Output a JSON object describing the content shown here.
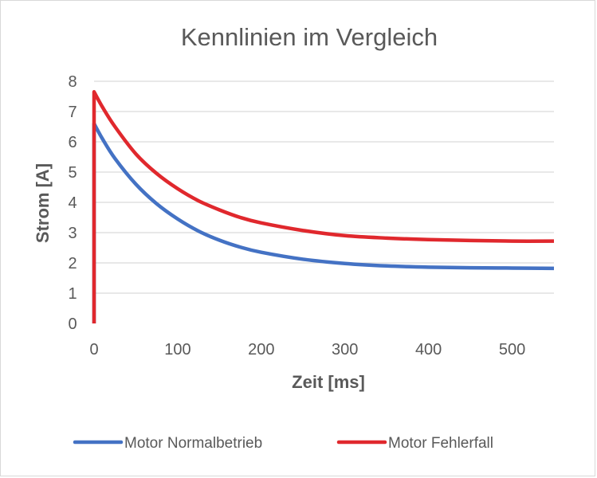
{
  "chart_data": {
    "type": "line",
    "title": "Kennlinien im Vergleich",
    "xlabel": "Zeit [ms]",
    "ylabel": "Strom [A]",
    "xlim": [
      0,
      550
    ],
    "ylim": [
      0,
      8
    ],
    "x_ticks": [
      "0",
      "100",
      "200",
      "300",
      "400",
      "500"
    ],
    "y_ticks": [
      "0",
      "1",
      "2",
      "3",
      "4",
      "5",
      "6",
      "7",
      "8"
    ],
    "grid": true,
    "legend_position": "bottom",
    "series": [
      {
        "name": "Motor Normalbetrieb",
        "color": "#4472C4",
        "x": [
          0,
          0,
          10,
          25,
          50,
          75,
          100,
          125,
          150,
          175,
          200,
          250,
          300,
          350,
          400,
          450,
          500,
          550
        ],
        "values": [
          0,
          6.6,
          6.1,
          5.45,
          4.6,
          3.95,
          3.45,
          3.05,
          2.75,
          2.52,
          2.35,
          2.12,
          1.98,
          1.9,
          1.86,
          1.84,
          1.83,
          1.82
        ]
      },
      {
        "name": "Motor Fehlerfall",
        "color": "#E0282D",
        "x": [
          0,
          0,
          10,
          25,
          50,
          75,
          100,
          125,
          150,
          175,
          200,
          250,
          300,
          350,
          400,
          450,
          500,
          550
        ],
        "values": [
          0,
          7.65,
          7.15,
          6.5,
          5.6,
          4.95,
          4.45,
          4.05,
          3.75,
          3.5,
          3.32,
          3.07,
          2.9,
          2.82,
          2.77,
          2.74,
          2.72,
          2.72
        ]
      }
    ]
  }
}
